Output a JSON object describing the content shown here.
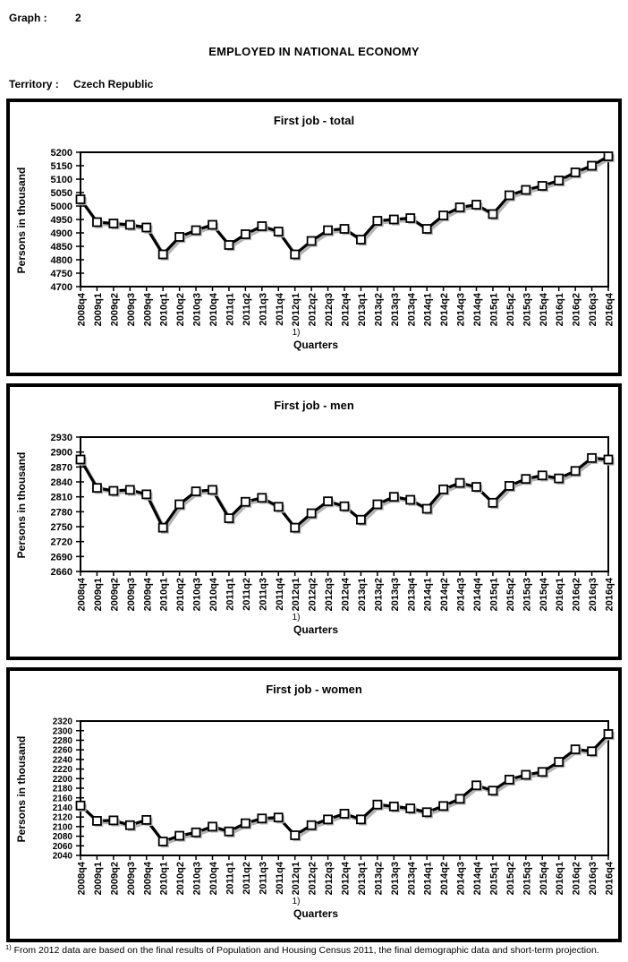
{
  "page": {
    "graph_label": "Graph :",
    "graph_number": "2",
    "main_title": "EMPLOYED IN NATIONAL ECONOMY",
    "territory_label": "Territory :",
    "territory_value": "Czech Republic",
    "footnote_marker": "1)",
    "footnote_text": "From 2012 data are based on the final results of Population and Housing Census 2011, the final demographic data and short-term projection."
  },
  "chart_data": [
    {
      "type": "line",
      "title": "First job - total",
      "ylabel": "Persons in thousand",
      "xlabel": "Quarters",
      "x_footnote_marker": "1)",
      "ylim": [
        4700,
        5200
      ],
      "ytick_step": 50,
      "grid": false,
      "legend": "none",
      "marker": "white-square",
      "line_color": "#000000",
      "categories": [
        "2008q4",
        "2009q1",
        "2009q2",
        "2009q3",
        "2009q4",
        "2010q1",
        "2010q2",
        "2010q3",
        "2010q4",
        "2011q1",
        "2011q2",
        "2011q3",
        "2011q4",
        "2012q1",
        "2012q2",
        "2012q3",
        "2012q4",
        "2013q1",
        "2013q2",
        "2013q3",
        "2013q4",
        "2014q1",
        "2014q2",
        "2014q3",
        "2014q4",
        "2015q1",
        "2015q2",
        "2015q3",
        "2015q4",
        "2016q1",
        "2016q2",
        "2016q3",
        "2016q4"
      ],
      "values": [
        5025,
        4940,
        4935,
        4930,
        4920,
        4820,
        4885,
        4910,
        4930,
        4855,
        4895,
        4925,
        4905,
        4820,
        4870,
        4910,
        4915,
        4875,
        4945,
        4950,
        4955,
        4915,
        4965,
        4995,
        5005,
        4970,
        5040,
        5060,
        5075,
        5095,
        5125,
        5150,
        5185
      ]
    },
    {
      "type": "line",
      "title": "First job - men",
      "ylabel": "Persons in thousand",
      "xlabel": "Quarters",
      "x_footnote_marker": "1)",
      "ylim": [
        2660,
        2930
      ],
      "ytick_step": 30,
      "grid": false,
      "legend": "none",
      "marker": "white-square",
      "line_color": "#000000",
      "categories": [
        "2008q4",
        "2009q1",
        "2009q2",
        "2009q3",
        "2009q4",
        "2010q1",
        "2010q2",
        "2010q3",
        "2010q4",
        "2011q1",
        "2011q2",
        "2011q3",
        "2011q4",
        "2012q1",
        "2012q2",
        "2012q3",
        "2012q4",
        "2013q1",
        "2013q2",
        "2013q3",
        "2013q4",
        "2014q1",
        "2014q2",
        "2014q3",
        "2014q4",
        "2015q1",
        "2015q2",
        "2015q3",
        "2015q4",
        "2016q1",
        "2016q2",
        "2016q3",
        "2016q4"
      ],
      "values": [
        2885,
        2828,
        2822,
        2824,
        2815,
        2748,
        2795,
        2821,
        2824,
        2767,
        2800,
        2808,
        2790,
        2748,
        2777,
        2801,
        2791,
        2764,
        2795,
        2810,
        2804,
        2786,
        2825,
        2838,
        2830,
        2798,
        2832,
        2846,
        2853,
        2847,
        2862,
        2888,
        2885
      ]
    },
    {
      "type": "line",
      "title": "First job - women",
      "ylabel": "Persons in thousand",
      "xlabel": "Quarters",
      "x_footnote_marker": "1)",
      "ylim": [
        2040,
        2320
      ],
      "ytick_step": 20,
      "grid": false,
      "legend": "none",
      "marker": "white-square",
      "line_color": "#000000",
      "categories": [
        "2008q4",
        "2009q1",
        "2009q2",
        "2009q3",
        "2009q4",
        "2010q1",
        "2010q2",
        "2010q3",
        "2010q4",
        "2011q1",
        "2011q2",
        "2011q3",
        "2011q4",
        "2012q1",
        "2012q2",
        "2012q3",
        "2012q4",
        "2013q1",
        "2013q2",
        "2013q3",
        "2013q4",
        "2014q1",
        "2014q2",
        "2014q3",
        "2014q4",
        "2015q1",
        "2015q2",
        "2015q3",
        "2015q4",
        "2016q1",
        "2016q2",
        "2016q3",
        "2016q4"
      ],
      "values": [
        2144,
        2112,
        2113,
        2103,
        2114,
        2069,
        2081,
        2088,
        2100,
        2090,
        2107,
        2117,
        2119,
        2082,
        2103,
        2115,
        2127,
        2115,
        2146,
        2142,
        2138,
        2130,
        2143,
        2158,
        2186,
        2175,
        2198,
        2208,
        2214,
        2235,
        2261,
        2257,
        2293
      ]
    }
  ]
}
